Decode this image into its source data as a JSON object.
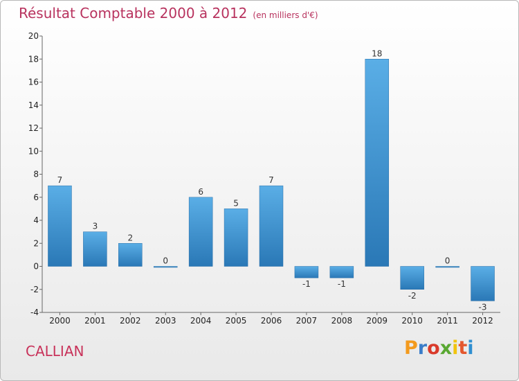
{
  "title": "Résultat Comptable 2000 à 2012",
  "subtitle": "(en milliers d'€)",
  "commune": "CALLIAN",
  "logo": {
    "text": "Proxiti",
    "colors": [
      "#f39a1d",
      "#3a7dc9",
      "#d93a2b",
      "#59a832",
      "#f1c40f",
      "#e4572e",
      "#2f8fd1"
    ]
  },
  "colors": {
    "bar_top": "#5aaee6",
    "bar_bottom": "#2a78b6",
    "title": "#b8325e"
  },
  "chart_data": {
    "type": "bar",
    "title": "Résultat Comptable 2000 à 2012",
    "subtitle": "(en milliers d'€)",
    "xlabel": "",
    "ylabel": "",
    "ylim": [
      -4,
      20
    ],
    "yticks": [
      -4,
      -2,
      0,
      2,
      4,
      6,
      8,
      10,
      12,
      14,
      16,
      18,
      20
    ],
    "categories": [
      "2000",
      "2001",
      "2002",
      "2003",
      "2004",
      "2005",
      "2006",
      "2007",
      "2008",
      "2009",
      "2010",
      "2011",
      "2012"
    ],
    "values": [
      7,
      3,
      2,
      0,
      6,
      5,
      7,
      -1,
      -1,
      18,
      -2,
      0,
      -3
    ],
    "value_labels": [
      "7",
      "3",
      "2",
      "0",
      "6",
      "5",
      "7",
      "-1",
      "-1",
      "18",
      "-2",
      "0",
      "-3"
    ],
    "grid": false
  }
}
